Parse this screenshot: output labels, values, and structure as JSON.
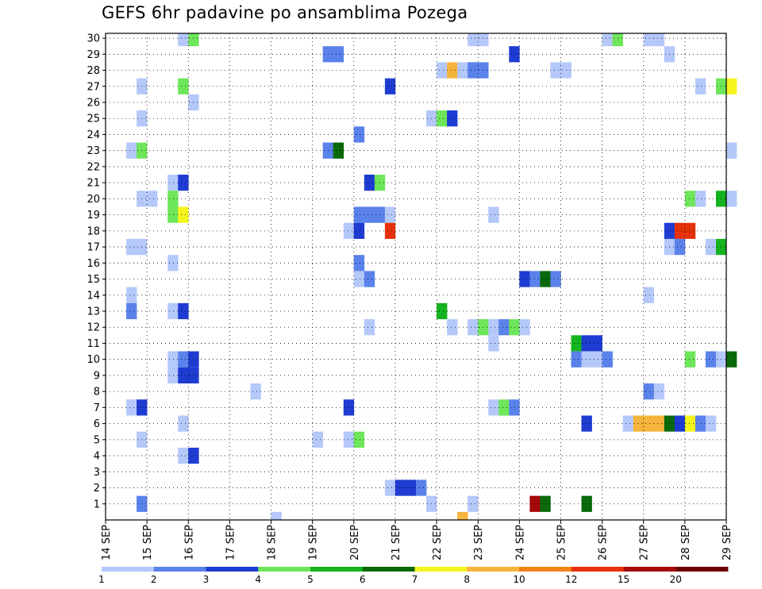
{
  "chart_data": {
    "type": "heatmap",
    "title": "GEFS 6hr padavine po ansamblima Pozega",
    "x_labels": [
      "14 SEP",
      "15 SEP",
      "16 SEP",
      "17 SEP",
      "18 SEP",
      "19 SEP",
      "20 SEP",
      "21 SEP",
      "22 SEP",
      "23 SEP",
      "24 SEP",
      "25 SEP",
      "26 SEP",
      "27 SEP",
      "28 SEP",
      "29 SEP"
    ],
    "y_labels": [
      "1",
      "2",
      "3",
      "4",
      "5",
      "6",
      "7",
      "8",
      "9",
      "10",
      "11",
      "12",
      "13",
      "14",
      "15",
      "16",
      "17",
      "18",
      "19",
      "20",
      "21",
      "22",
      "23",
      "24",
      "25",
      "26",
      "27",
      "28",
      "29",
      "30"
    ],
    "xlim": [
      "14 SEP",
      "29 SEP"
    ],
    "ylim": [
      0,
      30
    ],
    "step_hours": 6,
    "grid": true,
    "color_scale": {
      "levels": [
        "1",
        "2",
        "3",
        "4",
        "5",
        "6",
        "7",
        "8",
        "10",
        "12",
        "15",
        "20"
      ],
      "colors": [
        "#b4c8fa",
        "#5a82eb",
        "#1e3cd2",
        "#6ee65a",
        "#14b41e",
        "#0a690a",
        "#f5f51e",
        "#f5b43c",
        "#f58214",
        "#e6320a",
        "#a50a0a",
        "#6e0000"
      ]
    },
    "cells": [
      {
        "member": 30,
        "step": 7,
        "bin": 0
      },
      {
        "member": 30,
        "step": 8,
        "bin": 3
      },
      {
        "member": 30,
        "step": 35,
        "bin": 0
      },
      {
        "member": 30,
        "step": 36,
        "bin": 0
      },
      {
        "member": 30,
        "step": 48,
        "bin": 0
      },
      {
        "member": 30,
        "step": 49,
        "bin": 3
      },
      {
        "member": 30,
        "step": 52,
        "bin": 0
      },
      {
        "member": 30,
        "step": 53,
        "bin": 0
      },
      {
        "member": 29,
        "step": 21,
        "bin": 1
      },
      {
        "member": 29,
        "step": 22,
        "bin": 1
      },
      {
        "member": 29,
        "step": 39,
        "bin": 2
      },
      {
        "member": 29,
        "step": 54,
        "bin": 0
      },
      {
        "member": 28,
        "step": 32,
        "bin": 0
      },
      {
        "member": 28,
        "step": 33,
        "bin": 7
      },
      {
        "member": 28,
        "step": 34,
        "bin": 0
      },
      {
        "member": 28,
        "step": 35,
        "bin": 1
      },
      {
        "member": 28,
        "step": 36,
        "bin": 1
      },
      {
        "member": 28,
        "step": 43,
        "bin": 0
      },
      {
        "member": 28,
        "step": 44,
        "bin": 0
      },
      {
        "member": 27,
        "step": 3,
        "bin": 0
      },
      {
        "member": 27,
        "step": 7,
        "bin": 3
      },
      {
        "member": 27,
        "step": 27,
        "bin": 2
      },
      {
        "member": 27,
        "step": 57,
        "bin": 0
      },
      {
        "member": 27,
        "step": 59,
        "bin": 3
      },
      {
        "member": 27,
        "step": 60,
        "bin": 6
      },
      {
        "member": 26,
        "step": 8,
        "bin": 0
      },
      {
        "member": 25,
        "step": 3,
        "bin": 0
      },
      {
        "member": 25,
        "step": 31,
        "bin": 0
      },
      {
        "member": 25,
        "step": 32,
        "bin": 3
      },
      {
        "member": 25,
        "step": 33,
        "bin": 2
      },
      {
        "member": 24,
        "step": 24,
        "bin": 1
      },
      {
        "member": 23,
        "step": 2,
        "bin": 0
      },
      {
        "member": 23,
        "step": 3,
        "bin": 3
      },
      {
        "member": 23,
        "step": 21,
        "bin": 1
      },
      {
        "member": 23,
        "step": 22,
        "bin": 5
      },
      {
        "member": 23,
        "step": 60,
        "bin": 0
      },
      {
        "member": 21,
        "step": 6,
        "bin": 0
      },
      {
        "member": 21,
        "step": 7,
        "bin": 2
      },
      {
        "member": 21,
        "step": 25,
        "bin": 2
      },
      {
        "member": 21,
        "step": 26,
        "bin": 3
      },
      {
        "member": 20,
        "step": 3,
        "bin": 0
      },
      {
        "member": 20,
        "step": 4,
        "bin": 0
      },
      {
        "member": 20,
        "step": 6,
        "bin": 3
      },
      {
        "member": 20,
        "step": 56,
        "bin": 3
      },
      {
        "member": 20,
        "step": 57,
        "bin": 0
      },
      {
        "member": 20,
        "step": 59,
        "bin": 4
      },
      {
        "member": 20,
        "step": 60,
        "bin": 0
      },
      {
        "member": 19,
        "step": 6,
        "bin": 3
      },
      {
        "member": 19,
        "step": 7,
        "bin": 6
      },
      {
        "member": 19,
        "step": 24,
        "bin": 1
      },
      {
        "member": 19,
        "step": 25,
        "bin": 1
      },
      {
        "member": 19,
        "step": 26,
        "bin": 1
      },
      {
        "member": 19,
        "step": 27,
        "bin": 0
      },
      {
        "member": 19,
        "step": 37,
        "bin": 0
      },
      {
        "member": 18,
        "step": 23,
        "bin": 0
      },
      {
        "member": 18,
        "step": 24,
        "bin": 2
      },
      {
        "member": 18,
        "step": 27,
        "bin": 9
      },
      {
        "member": 18,
        "step": 54,
        "bin": 2
      },
      {
        "member": 18,
        "step": 55,
        "bin": 9
      },
      {
        "member": 18,
        "step": 56,
        "bin": 9
      },
      {
        "member": 17,
        "step": 2,
        "bin": 0
      },
      {
        "member": 17,
        "step": 3,
        "bin": 0
      },
      {
        "member": 17,
        "step": 54,
        "bin": 0
      },
      {
        "member": 17,
        "step": 55,
        "bin": 1
      },
      {
        "member": 17,
        "step": 58,
        "bin": 0
      },
      {
        "member": 17,
        "step": 59,
        "bin": 4
      },
      {
        "member": 16,
        "step": 6,
        "bin": 0
      },
      {
        "member": 16,
        "step": 24,
        "bin": 1
      },
      {
        "member": 15,
        "step": 24,
        "bin": 0
      },
      {
        "member": 15,
        "step": 25,
        "bin": 1
      },
      {
        "member": 15,
        "step": 40,
        "bin": 2
      },
      {
        "member": 15,
        "step": 41,
        "bin": 1
      },
      {
        "member": 15,
        "step": 42,
        "bin": 5
      },
      {
        "member": 15,
        "step": 43,
        "bin": 1
      },
      {
        "member": 14,
        "step": 2,
        "bin": 0
      },
      {
        "member": 14,
        "step": 52,
        "bin": 0
      },
      {
        "member": 13,
        "step": 2,
        "bin": 1
      },
      {
        "member": 13,
        "step": 6,
        "bin": 0
      },
      {
        "member": 13,
        "step": 7,
        "bin": 2
      },
      {
        "member": 13,
        "step": 32,
        "bin": 4
      },
      {
        "member": 12,
        "step": 25,
        "bin": 0
      },
      {
        "member": 12,
        "step": 33,
        "bin": 0
      },
      {
        "member": 12,
        "step": 35,
        "bin": 0
      },
      {
        "member": 12,
        "step": 36,
        "bin": 3
      },
      {
        "member": 12,
        "step": 37,
        "bin": 0
      },
      {
        "member": 12,
        "step": 38,
        "bin": 1
      },
      {
        "member": 12,
        "step": 39,
        "bin": 3
      },
      {
        "member": 12,
        "step": 40,
        "bin": 0
      },
      {
        "member": 11,
        "step": 37,
        "bin": 0
      },
      {
        "member": 11,
        "step": 45,
        "bin": 4
      },
      {
        "member": 11,
        "step": 46,
        "bin": 2
      },
      {
        "member": 11,
        "step": 47,
        "bin": 2
      },
      {
        "member": 10,
        "step": 6,
        "bin": 0
      },
      {
        "member": 10,
        "step": 7,
        "bin": 1
      },
      {
        "member": 10,
        "step": 8,
        "bin": 2
      },
      {
        "member": 10,
        "step": 45,
        "bin": 1
      },
      {
        "member": 10,
        "step": 46,
        "bin": 0
      },
      {
        "member": 10,
        "step": 47,
        "bin": 0
      },
      {
        "member": 10,
        "step": 48,
        "bin": 1
      },
      {
        "member": 10,
        "step": 56,
        "bin": 3
      },
      {
        "member": 10,
        "step": 58,
        "bin": 1
      },
      {
        "member": 10,
        "step": 59,
        "bin": 0
      },
      {
        "member": 10,
        "step": 60,
        "bin": 5
      },
      {
        "member": 9,
        "step": 6,
        "bin": 0
      },
      {
        "member": 9,
        "step": 7,
        "bin": 2
      },
      {
        "member": 9,
        "step": 8,
        "bin": 2
      },
      {
        "member": 8,
        "step": 14,
        "bin": 0
      },
      {
        "member": 8,
        "step": 52,
        "bin": 1
      },
      {
        "member": 8,
        "step": 53,
        "bin": 0
      },
      {
        "member": 7,
        "step": 2,
        "bin": 0
      },
      {
        "member": 7,
        "step": 3,
        "bin": 2
      },
      {
        "member": 7,
        "step": 23,
        "bin": 2
      },
      {
        "member": 7,
        "step": 37,
        "bin": 0
      },
      {
        "member": 7,
        "step": 38,
        "bin": 3
      },
      {
        "member": 7,
        "step": 39,
        "bin": 1
      },
      {
        "member": 6,
        "step": 7,
        "bin": 0
      },
      {
        "member": 6,
        "step": 46,
        "bin": 2
      },
      {
        "member": 6,
        "step": 50,
        "bin": 0
      },
      {
        "member": 6,
        "step": 51,
        "bin": 7
      },
      {
        "member": 6,
        "step": 52,
        "bin": 7
      },
      {
        "member": 6,
        "step": 53,
        "bin": 7
      },
      {
        "member": 6,
        "step": 54,
        "bin": 5
      },
      {
        "member": 6,
        "step": 55,
        "bin": 2
      },
      {
        "member": 6,
        "step": 56,
        "bin": 6
      },
      {
        "member": 6,
        "step": 57,
        "bin": 1
      },
      {
        "member": 6,
        "step": 58,
        "bin": 0
      },
      {
        "member": 5,
        "step": 3,
        "bin": 0
      },
      {
        "member": 5,
        "step": 20,
        "bin": 0
      },
      {
        "member": 5,
        "step": 23,
        "bin": 0
      },
      {
        "member": 5,
        "step": 24,
        "bin": 3
      },
      {
        "member": 4,
        "step": 7,
        "bin": 0
      },
      {
        "member": 4,
        "step": 8,
        "bin": 2
      },
      {
        "member": 2,
        "step": 27,
        "bin": 0
      },
      {
        "member": 2,
        "step": 28,
        "bin": 2
      },
      {
        "member": 2,
        "step": 29,
        "bin": 2
      },
      {
        "member": 2,
        "step": 30,
        "bin": 1
      },
      {
        "member": 1,
        "step": 3,
        "bin": 1
      },
      {
        "member": 1,
        "step": 31,
        "bin": 0
      },
      {
        "member": 1,
        "step": 35,
        "bin": 0
      },
      {
        "member": 1,
        "step": 41,
        "bin": 10
      },
      {
        "member": 1,
        "step": 42,
        "bin": 5
      },
      {
        "member": 1,
        "step": 46,
        "bin": 5
      },
      {
        "member": 0,
        "step": 16,
        "bin": 0
      },
      {
        "member": 0,
        "step": 34,
        "bin": 7
      }
    ]
  }
}
